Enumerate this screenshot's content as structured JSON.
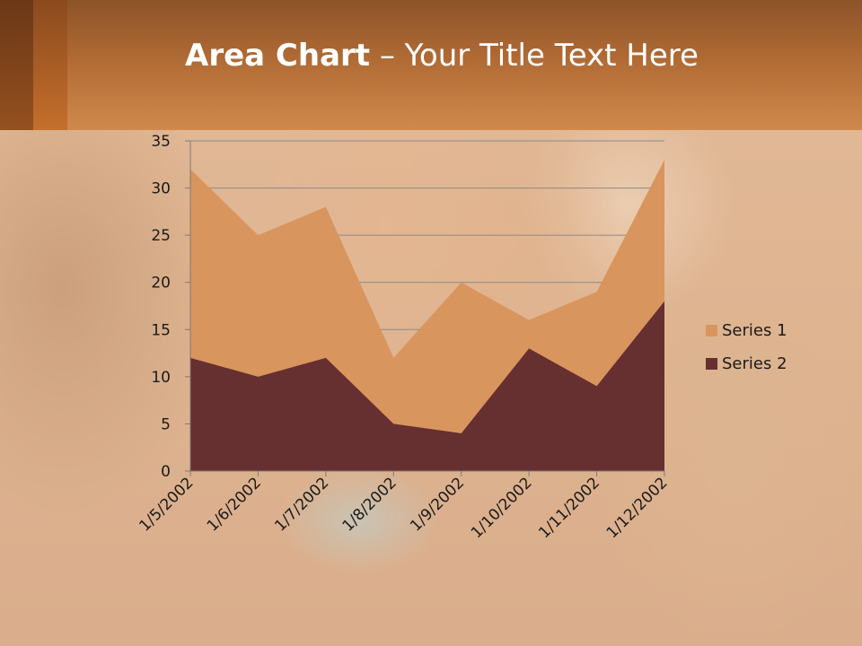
{
  "slide": {
    "title_bold": "Area Chart",
    "title_rest": " – Your Title Text Here"
  },
  "chart_data": {
    "type": "area",
    "categories": [
      "1/5/2002",
      "1/6/2002",
      "1/7/2002",
      "1/8/2002",
      "1/9/2002",
      "1/10/2002",
      "1/11/2002",
      "1/12/2002"
    ],
    "series": [
      {
        "name": "Series 1",
        "values": [
          32,
          25,
          28,
          12,
          20,
          16,
          19,
          33
        ],
        "color": "#d9955e"
      },
      {
        "name": "Series 2",
        "values": [
          12,
          10,
          12,
          5,
          4,
          13,
          9,
          18
        ],
        "color": "#662f30"
      }
    ],
    "ylim": [
      0,
      35
    ],
    "yticks": [
      0,
      5,
      10,
      15,
      20,
      25,
      30,
      35
    ],
    "grid": true,
    "legend": "right",
    "title": "",
    "xlabel": "",
    "ylabel": ""
  }
}
